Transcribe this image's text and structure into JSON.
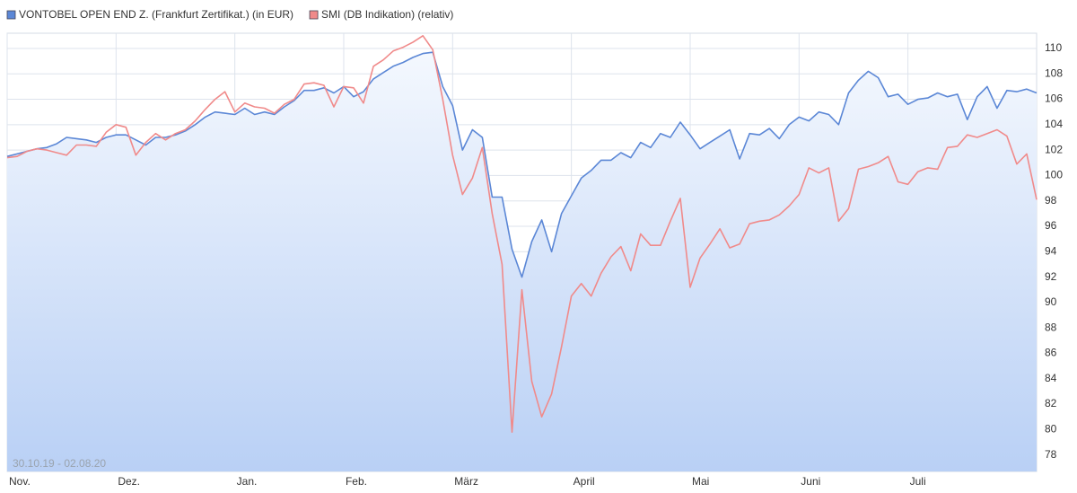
{
  "chart_data": {
    "type": "line",
    "annotation": "30.10.19 - 02.08.20",
    "categories": [
      "Nov.",
      null,
      null,
      null,
      null,
      null,
      null,
      null,
      null,
      null,
      null,
      "Dez.",
      null,
      null,
      null,
      null,
      null,
      null,
      null,
      null,
      null,
      null,
      null,
      "Jan.",
      null,
      null,
      null,
      null,
      null,
      null,
      null,
      null,
      null,
      null,
      "Feb.",
      null,
      null,
      null,
      null,
      null,
      null,
      null,
      null,
      null,
      null,
      "März",
      null,
      null,
      null,
      null,
      null,
      null,
      null,
      null,
      null,
      null,
      null,
      "April",
      null,
      null,
      null,
      null,
      null,
      null,
      null,
      null,
      null,
      null,
      null,
      "Mai",
      null,
      null,
      null,
      null,
      null,
      null,
      null,
      null,
      null,
      null,
      "Juni",
      null,
      null,
      null,
      null,
      null,
      null,
      null,
      null,
      null,
      null,
      "Juli",
      null,
      null,
      null,
      null,
      null,
      null,
      null,
      null,
      null,
      null,
      null,
      null,
      null
    ],
    "series": [
      {
        "name": "VONTOBEL OPEN END Z. (Frankfurt Zertifikat.) (in EUR)",
        "color": "#5b87d6",
        "fill": true,
        "values": [
          101.5,
          101.7,
          101.9,
          102.1,
          102.2,
          102.5,
          103.0,
          102.9,
          102.8,
          102.6,
          103.0,
          103.2,
          103.2,
          102.8,
          102.4,
          103.0,
          103.0,
          103.2,
          103.5,
          104.0,
          104.6,
          105.0,
          104.9,
          104.8,
          105.3,
          104.8,
          105.0,
          104.8,
          105.4,
          105.9,
          106.7,
          106.7,
          106.9,
          106.5,
          107.0,
          106.2,
          106.6,
          107.6,
          108.1,
          108.6,
          108.9,
          109.3,
          109.6,
          109.7,
          107.0,
          105.5,
          102.0,
          103.6,
          103.0,
          98.3,
          98.3,
          94.2,
          92.0,
          94.8,
          96.5,
          94.0,
          97.0,
          98.4,
          99.8,
          100.4,
          101.2,
          101.2,
          101.8,
          101.4,
          102.6,
          102.2,
          103.3,
          103.0,
          104.2,
          103.2,
          102.1,
          102.6,
          103.1,
          103.6,
          101.3,
          103.3,
          103.2,
          103.7,
          102.9,
          104.0,
          104.6,
          104.3,
          105.0,
          104.8,
          104.0,
          106.5,
          107.5,
          108.2,
          107.7,
          106.2,
          106.4,
          105.6,
          106.0,
          106.1,
          106.5,
          106.2,
          106.4,
          104.4,
          106.2,
          107.0,
          105.3,
          106.7,
          106.6,
          106.8,
          106.5
        ]
      },
      {
        "name": "SMI (DB Indikation) (relativ)",
        "color": "#f08a8a",
        "fill": false,
        "values": [
          101.4,
          101.5,
          101.9,
          102.1,
          102.0,
          101.8,
          101.6,
          102.4,
          102.4,
          102.3,
          103.4,
          104.0,
          103.8,
          101.6,
          102.6,
          103.3,
          102.8,
          103.3,
          103.6,
          104.3,
          105.2,
          106.0,
          106.6,
          105.0,
          105.7,
          105.4,
          105.3,
          104.9,
          105.6,
          106.0,
          107.2,
          107.3,
          107.1,
          105.4,
          107.0,
          106.9,
          105.7,
          108.6,
          109.1,
          109.8,
          110.1,
          110.5,
          111.0,
          109.9,
          106.0,
          101.6,
          98.5,
          99.8,
          102.2,
          97.0,
          93.0,
          79.8,
          91.0,
          83.8,
          81.0,
          82.8,
          86.5,
          90.5,
          91.5,
          90.5,
          92.3,
          93.6,
          94.4,
          92.5,
          95.4,
          94.5,
          94.5,
          96.4,
          98.2,
          91.2,
          93.5,
          94.6,
          95.8,
          94.3,
          94.6,
          96.2,
          96.4,
          96.5,
          96.9,
          97.6,
          98.5,
          100.6,
          100.2,
          100.6,
          96.4,
          97.4,
          100.5,
          100.7,
          101.0,
          101.5,
          99.5,
          99.3,
          100.3,
          100.6,
          100.5,
          102.2,
          102.3,
          103.2,
          103.0,
          103.3,
          103.6,
          103.1,
          100.9,
          101.7,
          98.1
        ]
      }
    ],
    "ylim": [
      76.7,
      111.2
    ],
    "yticks": [
      78,
      80,
      82,
      84,
      86,
      88,
      90,
      92,
      94,
      96,
      98,
      100,
      102,
      104,
      106,
      108,
      110
    ],
    "grid": true
  }
}
